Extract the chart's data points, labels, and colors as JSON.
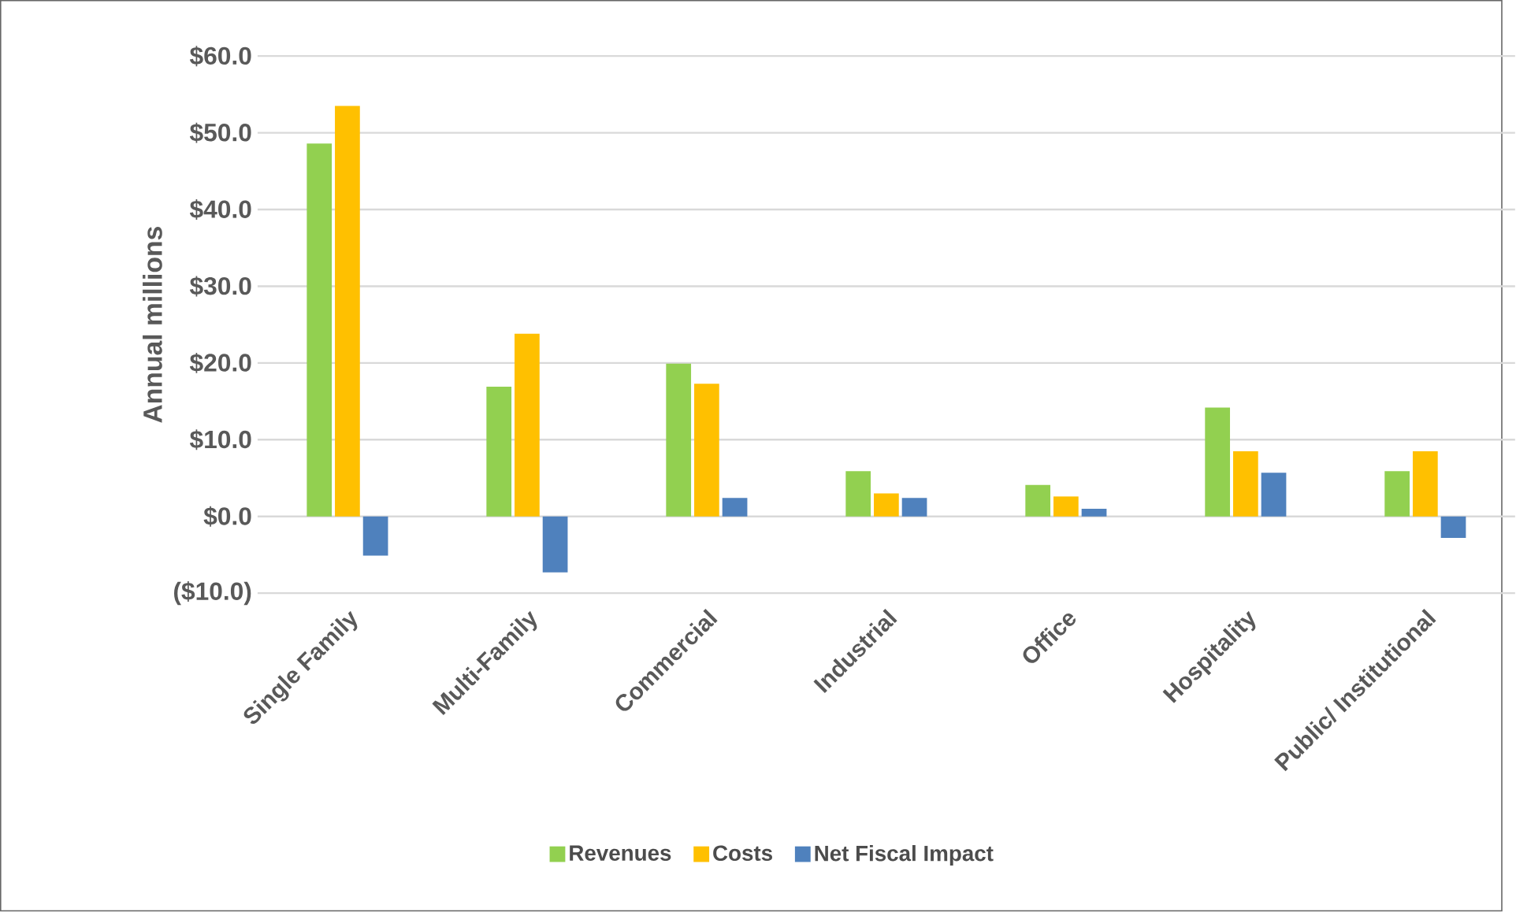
{
  "chart_data": {
    "type": "bar",
    "ylabel": "Annual millions",
    "categories": [
      "Single Family",
      "Multi-Family",
      "Commercial",
      "Industrial",
      "Office",
      "Hospitality",
      "Public/ Institutional"
    ],
    "series": [
      {
        "name": "Revenues",
        "color": "#92d050",
        "values": [
          48.6,
          16.9,
          19.9,
          5.9,
          4.1,
          14.2,
          5.9
        ]
      },
      {
        "name": "Costs",
        "color": "#ffc000",
        "values": [
          53.5,
          23.8,
          17.3,
          3.0,
          2.6,
          8.5,
          8.5
        ]
      },
      {
        "name": "Net Fiscal Impact",
        "color": "#4f81bd",
        "values": [
          -5.1,
          -7.3,
          2.4,
          2.4,
          1.0,
          5.7,
          -2.8
        ]
      }
    ],
    "ylim": [
      -10,
      60
    ],
    "yticks": [
      {
        "value": -10,
        "label": "($10.0)"
      },
      {
        "value": 0,
        "label": "$0.0"
      },
      {
        "value": 10,
        "label": "$10.0"
      },
      {
        "value": 20,
        "label": "$20.0"
      },
      {
        "value": 30,
        "label": "$30.0"
      },
      {
        "value": 40,
        "label": "$40.0"
      },
      {
        "value": 50,
        "label": "$50.0"
      },
      {
        "value": 60,
        "label": "$60.0"
      }
    ],
    "grid": "y",
    "legend": "bottom"
  }
}
